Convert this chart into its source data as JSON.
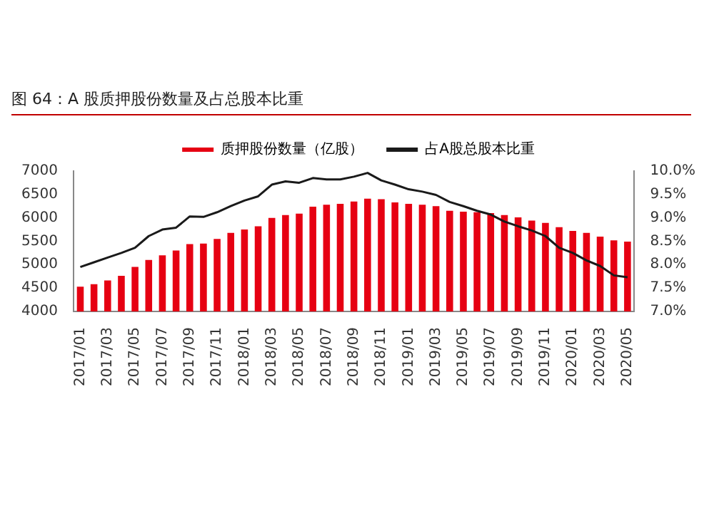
{
  "chart_data": {
    "type": "bar",
    "title": "图 64：A 股质押股份数量及占总股本比重",
    "legend": "top",
    "categories": [
      "2017/01",
      null,
      "2017/03",
      null,
      "2017/05",
      null,
      "2017/07",
      null,
      "2017/09",
      null,
      "2017/11",
      null,
      "2018/01",
      null,
      "2018/03",
      null,
      "2018/05",
      null,
      "2018/07",
      null,
      "2018/09",
      null,
      "2018/11",
      null,
      "2019/01",
      null,
      "2019/03",
      null,
      "2019/05",
      null,
      "2019/07",
      null,
      "2019/09",
      null,
      "2019/11",
      null,
      "2020/01",
      null,
      "2020/03",
      null,
      "2020/05"
    ],
    "series": [
      {
        "name": "质押股份数量（亿股）",
        "color": "#e60012",
        "values": [
          4530,
          4580,
          4660,
          4760,
          4950,
          5100,
          5200,
          5300,
          5440,
          5450,
          5550,
          5680,
          5750,
          5820,
          6000,
          6060,
          6090,
          6240,
          6280,
          6300,
          6350,
          6410,
          6400,
          6330,
          6300,
          6280,
          6250,
          6150,
          6130,
          6120,
          6100,
          6060,
          6010,
          5940,
          5890,
          5800,
          5720,
          5680,
          5600,
          5520,
          5490
        ]
      },
      {
        "name": "占A股总股本比重",
        "type": "line",
        "axis": "y2",
        "color": "#1a1a1a",
        "marker": "none",
        "values": [
          7.95,
          8.05,
          8.15,
          8.25,
          8.36,
          8.61,
          8.75,
          8.79,
          9.03,
          9.02,
          9.12,
          9.25,
          9.37,
          9.46,
          9.71,
          9.78,
          9.75,
          9.85,
          9.82,
          9.82,
          9.88,
          9.96,
          9.8,
          9.71,
          9.61,
          9.56,
          9.49,
          9.34,
          9.25,
          9.15,
          9.07,
          8.92,
          8.82,
          8.73,
          8.61,
          8.36,
          8.25,
          8.09,
          7.97,
          7.77,
          7.73
        ]
      }
    ],
    "ylim": [
      4000,
      7000
    ],
    "yticks": [
      4000,
      4500,
      5000,
      5500,
      6000,
      6500,
      7000
    ],
    "y2lim": [
      7,
      10
    ],
    "y2ticks": [
      {
        "value": 7,
        "label": "7.0%"
      },
      {
        "value": 7.5,
        "label": "7.5%"
      },
      {
        "value": 8,
        "label": "8.0%"
      },
      {
        "value": 8.5,
        "label": "8.5%"
      },
      {
        "value": 9,
        "label": "9.0%"
      },
      {
        "value": 9.5,
        "label": "9.5%"
      },
      {
        "value": 10,
        "label": "10.0%"
      }
    ],
    "grid": false
  }
}
